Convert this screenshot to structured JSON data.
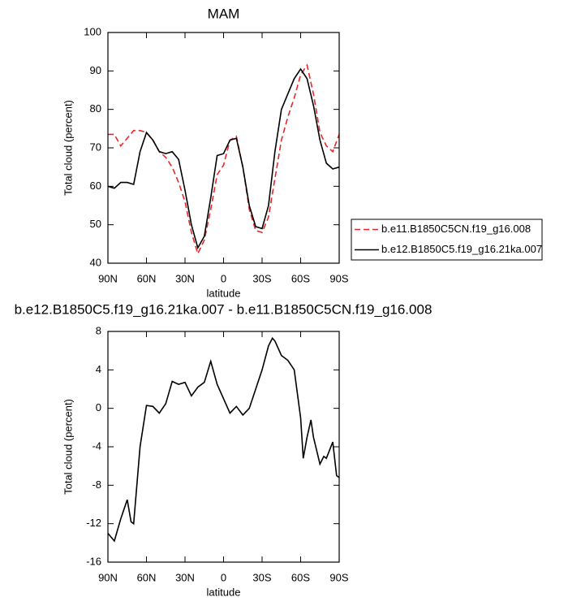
{
  "chart_data": [
    {
      "type": "line",
      "title": "MAM",
      "xlabel": "latitude",
      "ylabel": "Total cloud (percent)",
      "x": [
        90,
        85,
        80,
        75,
        70,
        65,
        60,
        55,
        50,
        45,
        40,
        35,
        30,
        25,
        20,
        15,
        10,
        5,
        0,
        -5,
        -10,
        -15,
        -20,
        -25,
        -30,
        -35,
        -40,
        -45,
        -50,
        -55,
        -60,
        -65,
        -70,
        -75,
        -80,
        -85,
        -90
      ],
      "series": [
        {
          "name": "b.e11.B1850C5CN.f19_g16.008",
          "color": "#e8262a",
          "dashed": true,
          "values": [
            73.5,
            73.5,
            70.5,
            72.5,
            74.5,
            74.5,
            74,
            72,
            69,
            67.5,
            65,
            61,
            56,
            48,
            42.5,
            46,
            54,
            63,
            65.5,
            72,
            73,
            65,
            54,
            48.5,
            48,
            52,
            62,
            72,
            78,
            83,
            89,
            91.5,
            84,
            74,
            70.5,
            69,
            73.5
          ]
        },
        {
          "name": "b.e12.B1850C5.f19_g16.21ka.007",
          "color": "#000000",
          "dashed": false,
          "values": [
            60,
            59.5,
            61,
            61,
            60.5,
            69,
            74,
            72,
            69,
            68.5,
            69,
            67,
            59,
            50,
            44,
            47,
            57,
            68,
            68.5,
            72,
            72.5,
            65,
            55,
            49.5,
            49,
            55,
            69,
            80,
            84,
            88,
            90.5,
            88,
            81,
            72,
            66,
            64.5,
            65
          ]
        }
      ],
      "xlim": [
        90,
        -90
      ],
      "xticks": [
        {
          "value": 90,
          "label": "90N"
        },
        {
          "value": 60,
          "label": "60N"
        },
        {
          "value": 30,
          "label": "30N"
        },
        0,
        {
          "value": -30,
          "label": "30S"
        },
        {
          "value": -60,
          "label": "60S"
        },
        {
          "value": -90,
          "label": "90S"
        }
      ],
      "ylim": [
        40,
        100
      ],
      "yticks": [
        40,
        50,
        60,
        70,
        80,
        90,
        100
      ],
      "grid": false,
      "legend": "right"
    },
    {
      "type": "line",
      "title": "b.e12.B1850C5.f19_g16.21ka.007 - b.e11.B1850C5CN.f19_g16.008",
      "xlabel": "latitude",
      "ylabel": "Total cloud (percent)",
      "x": [
        90,
        85,
        80,
        75,
        72,
        70,
        65,
        60,
        55,
        50,
        45,
        40,
        35,
        30,
        25,
        20,
        15,
        10,
        5,
        0,
        -5,
        -10,
        -15,
        -20,
        -25,
        -30,
        -35,
        -38,
        -40,
        -45,
        -50,
        -55,
        -60,
        -62,
        -65,
        -68,
        -70,
        -75,
        -78,
        -80,
        -85,
        -88,
        -90
      ],
      "color": "#000000",
      "values": [
        -13,
        -13.8,
        -11.5,
        -9.5,
        -11.8,
        -12,
        -4,
        0.3,
        0.2,
        -0.5,
        0.5,
        2.8,
        2.5,
        2.7,
        1.3,
        2.2,
        2.7,
        4.9,
        2.5,
        1,
        -0.5,
        0.2,
        -0.7,
        0,
        2,
        4,
        6.5,
        7.3,
        7,
        5.5,
        5,
        4,
        -1,
        -5.2,
        -3,
        -1.2,
        -3,
        -5.8,
        -5,
        -5.2,
        -3.5,
        -7,
        -7.2
      ],
      "xlim": [
        90,
        -90
      ],
      "xticks": [
        {
          "value": 90,
          "label": "90N"
        },
        {
          "value": 60,
          "label": "60N"
        },
        {
          "value": 30,
          "label": "30N"
        },
        0,
        {
          "value": -30,
          "label": "30S"
        },
        {
          "value": -60,
          "label": "60S"
        },
        {
          "value": -90,
          "label": "90S"
        }
      ],
      "ylim": [
        -16,
        8
      ],
      "yticks": [
        -16,
        -12,
        -8,
        -4,
        0,
        4,
        8
      ],
      "grid": false
    }
  ]
}
